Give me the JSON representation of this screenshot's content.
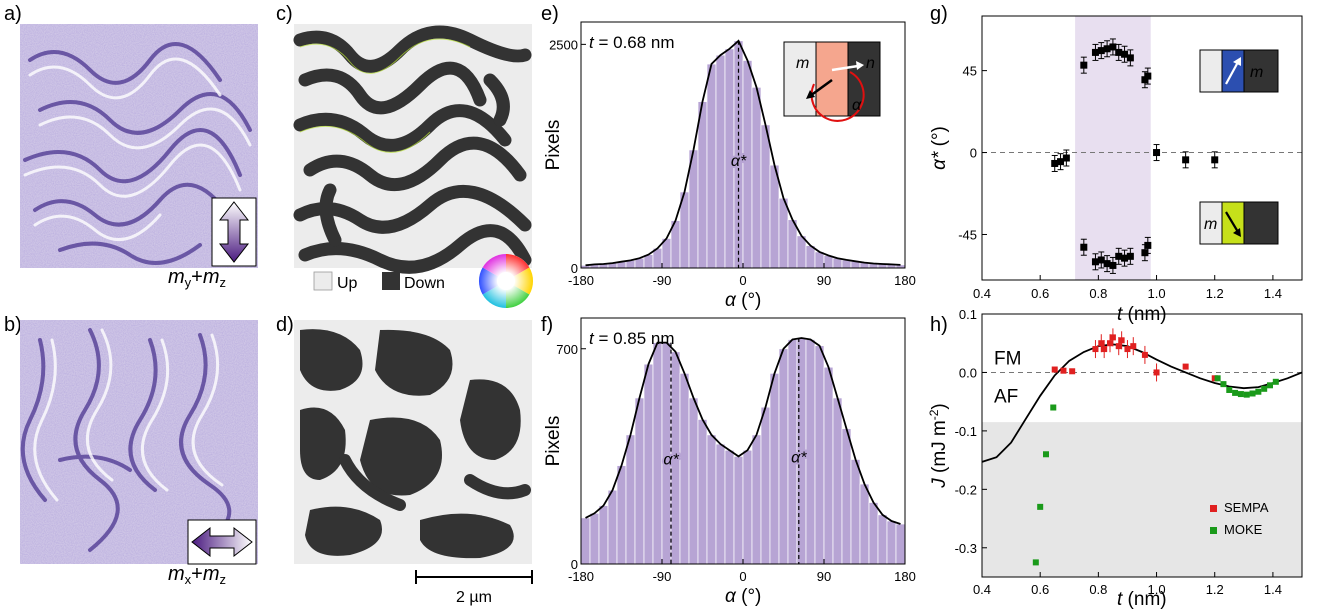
{
  "panels": {
    "a": {
      "label": "a)",
      "caption_main": "m",
      "sub1": "y",
      "plus": "+",
      "sub2": "z"
    },
    "b": {
      "label": "b)",
      "caption_main": "m",
      "sub1": "x",
      "plus": "+",
      "sub2": "z"
    },
    "c": {
      "label": "c)",
      "legend_up": "Up",
      "legend_down": "Down"
    },
    "d": {
      "label": "d)",
      "scalebar": "2 µm"
    },
    "e": {
      "label": "e)"
    },
    "f": {
      "label": "f)"
    },
    "g": {
      "label": "g)"
    },
    "h": {
      "label": "h)"
    }
  },
  "colors": {
    "hist": "#b7a4d4",
    "shade_g": "#e8dff0",
    "shade_h": "#e6e6e6",
    "sempa": "#e02020",
    "moke": "#1a9a1a",
    "domain_dark": "#333333",
    "domain_light": "#ececec"
  },
  "chart_data": [
    {
      "id": "e",
      "type": "bar",
      "annotation_t": "t",
      "annotation_val": " = 0.68 nm",
      "ylabel": "Pixels",
      "xlabel_sym": "α",
      "xlabel_unit": " (°)",
      "peak_label": "α*",
      "inset_m": "m",
      "inset_n": "n",
      "inset_alpha": "α",
      "xlim": [
        -180,
        180
      ],
      "ylim": [
        0,
        2750
      ],
      "xticks": [
        "-180",
        "-90",
        "0",
        "90",
        "180"
      ],
      "yticks": [
        {
          "v": 0,
          "t": "0"
        },
        {
          "v": 2500,
          "t": "2500"
        }
      ],
      "bin_width": 10,
      "bin_centers": [
        -175,
        -165,
        -155,
        -145,
        -135,
        -125,
        -115,
        -105,
        -95,
        -85,
        -75,
        -65,
        -55,
        -45,
        -35,
        -25,
        -15,
        -5,
        5,
        15,
        25,
        35,
        45,
        55,
        65,
        75,
        85,
        95,
        105,
        115,
        125,
        135,
        145,
        155,
        165,
        175
      ],
      "values": [
        30,
        40,
        45,
        55,
        70,
        85,
        110,
        150,
        220,
        330,
        530,
        850,
        1320,
        1860,
        2280,
        2380,
        2450,
        2540,
        2320,
        2020,
        1600,
        1150,
        780,
        540,
        360,
        250,
        180,
        140,
        110,
        90,
        75,
        60,
        50,
        45,
        40,
        35
      ],
      "peaks": [
        -5
      ]
    },
    {
      "id": "f",
      "type": "bar",
      "annotation_t": "t",
      "annotation_val": " = 0.85 nm",
      "ylabel": "Pixels",
      "xlabel_sym": "α",
      "xlabel_unit": " (°)",
      "peak_label": "α*",
      "xlim": [
        -180,
        180
      ],
      "ylim": [
        0,
        800
      ],
      "xticks": [
        "-180",
        "-90",
        "0",
        "90",
        "180"
      ],
      "yticks": [
        {
          "v": 0,
          "t": "0"
        },
        {
          "v": 700,
          "t": "700"
        }
      ],
      "bin_width": 10,
      "bin_centers": [
        -175,
        -165,
        -155,
        -145,
        -135,
        -125,
        -115,
        -105,
        -95,
        -85,
        -75,
        -65,
        -55,
        -45,
        -35,
        -25,
        -15,
        -5,
        5,
        15,
        25,
        35,
        45,
        55,
        65,
        75,
        85,
        95,
        105,
        115,
        125,
        135,
        145,
        155,
        165,
        175
      ],
      "values": [
        150,
        165,
        190,
        240,
        320,
        420,
        540,
        650,
        720,
        720,
        690,
        620,
        540,
        470,
        420,
        390,
        370,
        350,
        370,
        420,
        510,
        620,
        700,
        730,
        735,
        730,
        710,
        640,
        540,
        440,
        340,
        260,
        200,
        160,
        140,
        130
      ],
      "peaks": [
        -80,
        62
      ]
    },
    {
      "id": "g",
      "type": "scatter",
      "ylabel_sym": "α*",
      "ylabel_unit": " (°)",
      "xlabel_sym": "t",
      "xlabel_unit": " (nm)",
      "inset_m": "m",
      "xlim": [
        0.4,
        1.5
      ],
      "ylim": [
        -70,
        75
      ],
      "xticks": [
        "0.4",
        "0.6",
        "0.8",
        "1.0",
        "1.2",
        "1.4"
      ],
      "yticks": [
        {
          "v": -45,
          "t": "-45"
        },
        {
          "v": 0,
          "t": "0"
        },
        {
          "v": 45,
          "t": "45"
        }
      ],
      "shade_x": [
        0.72,
        0.98
      ],
      "points": [
        {
          "x": 0.65,
          "y": -6
        },
        {
          "x": 0.67,
          "y": -5
        },
        {
          "x": 0.69,
          "y": -3
        },
        {
          "x": 0.75,
          "y": 48
        },
        {
          "x": 0.79,
          "y": 55
        },
        {
          "x": 0.81,
          "y": 56
        },
        {
          "x": 0.83,
          "y": 57
        },
        {
          "x": 0.85,
          "y": 58
        },
        {
          "x": 0.87,
          "y": 55
        },
        {
          "x": 0.89,
          "y": 54
        },
        {
          "x": 0.91,
          "y": 52
        },
        {
          "x": 0.96,
          "y": 40
        },
        {
          "x": 0.97,
          "y": 42
        },
        {
          "x": 0.75,
          "y": -52
        },
        {
          "x": 0.79,
          "y": -60
        },
        {
          "x": 0.81,
          "y": -59
        },
        {
          "x": 0.83,
          "y": -61
        },
        {
          "x": 0.85,
          "y": -62
        },
        {
          "x": 0.87,
          "y": -57
        },
        {
          "x": 0.89,
          "y": -58
        },
        {
          "x": 0.91,
          "y": -57
        },
        {
          "x": 0.96,
          "y": -55
        },
        {
          "x": 0.97,
          "y": -51
        },
        {
          "x": 1.0,
          "y": 0
        },
        {
          "x": 1.1,
          "y": -4
        },
        {
          "x": 1.2,
          "y": -4
        }
      ]
    },
    {
      "id": "h",
      "type": "scatter",
      "ylabel_sym": "J",
      "ylabel_unit": " (mJ m",
      "ylabel_exp": "-2",
      "ylabel_close": ")",
      "xlabel_sym": "t",
      "xlabel_unit": " (nm)",
      "fm_label": "FM",
      "af_label": "AF",
      "xlim": [
        0.4,
        1.5
      ],
      "ylim": [
        -0.35,
        0.1
      ],
      "xticks": [
        "0.4",
        "0.6",
        "0.8",
        "1.0",
        "1.2",
        "1.4"
      ],
      "yticks": [
        {
          "v": -0.3,
          "t": "-0.3"
        },
        {
          "v": -0.2,
          "t": "-0.2"
        },
        {
          "v": -0.1,
          "t": "-0.1"
        },
        {
          "v": 0.0,
          "t": "0.0"
        },
        {
          "v": 0.1,
          "t": "0.1"
        }
      ],
      "shade_y_top": -0.085,
      "series": [
        {
          "name": "SEMPA",
          "points": [
            [
              0.65,
              0.005
            ],
            [
              0.68,
              0.003
            ],
            [
              0.71,
              0.002
            ],
            [
              0.79,
              0.04
            ],
            [
              0.81,
              0.05
            ],
            [
              0.82,
              0.04
            ],
            [
              0.84,
              0.05
            ],
            [
              0.85,
              0.06
            ],
            [
              0.87,
              0.045
            ],
            [
              0.88,
              0.055
            ],
            [
              0.9,
              0.04
            ],
            [
              0.92,
              0.045
            ],
            [
              0.96,
              0.03
            ],
            [
              1.0,
              0.0
            ],
            [
              1.1,
              0.01
            ],
            [
              1.2,
              -0.01
            ]
          ]
        },
        {
          "name": "MOKE",
          "points": [
            [
              0.585,
              -0.325
            ],
            [
              0.6,
              -0.23
            ],
            [
              0.62,
              -0.14
            ],
            [
              0.645,
              -0.06
            ],
            [
              1.21,
              -0.01
            ],
            [
              1.23,
              -0.02
            ],
            [
              1.25,
              -0.03
            ],
            [
              1.27,
              -0.035
            ],
            [
              1.29,
              -0.037
            ],
            [
              1.31,
              -0.038
            ],
            [
              1.33,
              -0.036
            ],
            [
              1.35,
              -0.033
            ],
            [
              1.37,
              -0.028
            ],
            [
              1.39,
              -0.022
            ],
            [
              1.41,
              -0.016
            ]
          ]
        }
      ],
      "fit": [
        [
          0.4,
          -0.153
        ],
        [
          0.45,
          -0.145
        ],
        [
          0.5,
          -0.12
        ],
        [
          0.55,
          -0.08
        ],
        [
          0.6,
          -0.04
        ],
        [
          0.65,
          -0.005
        ],
        [
          0.7,
          0.02
        ],
        [
          0.75,
          0.035
        ],
        [
          0.8,
          0.045
        ],
        [
          0.85,
          0.048
        ],
        [
          0.9,
          0.045
        ],
        [
          0.95,
          0.035
        ],
        [
          1.0,
          0.022
        ],
        [
          1.05,
          0.01
        ],
        [
          1.1,
          0.0
        ],
        [
          1.15,
          -0.01
        ],
        [
          1.2,
          -0.018
        ],
        [
          1.25,
          -0.024
        ],
        [
          1.3,
          -0.027
        ],
        [
          1.35,
          -0.025
        ],
        [
          1.4,
          -0.018
        ],
        [
          1.45,
          -0.01
        ],
        [
          1.5,
          0.0
        ]
      ]
    }
  ]
}
